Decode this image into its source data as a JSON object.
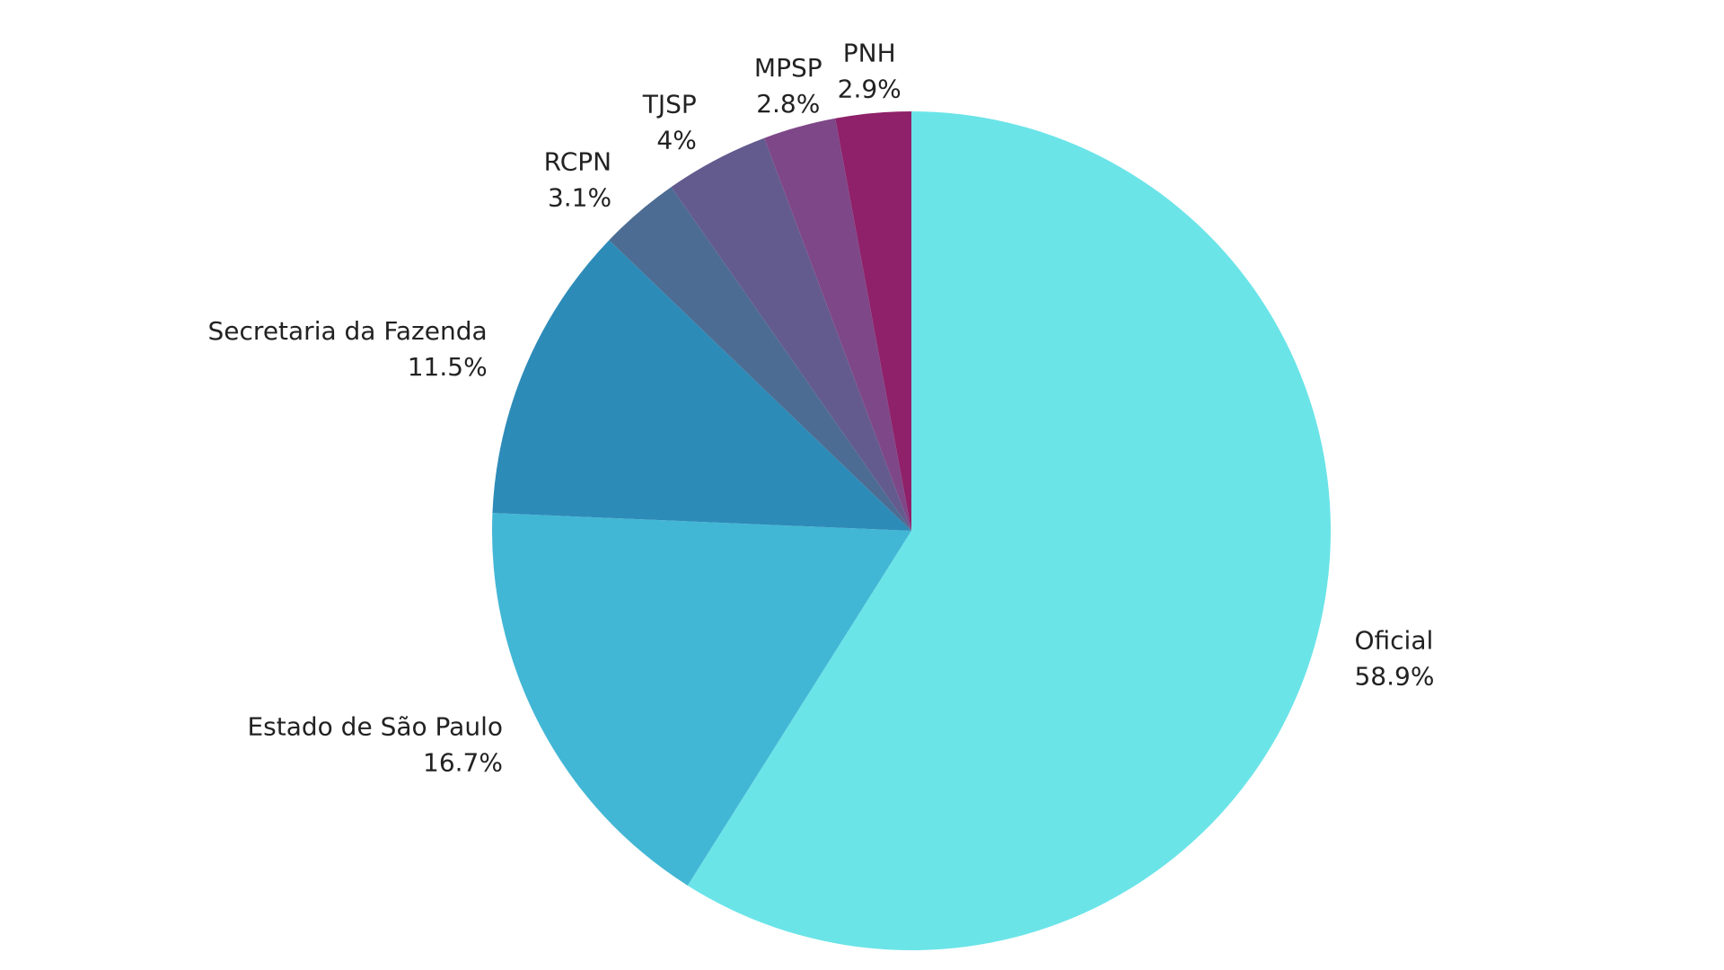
{
  "chart_data": {
    "type": "pie",
    "categories": [
      "Oficial",
      "Estado de São Paulo",
      "Secretaria da Fazenda",
      "RCPN",
      "TJSP",
      "MPSP",
      "PNH"
    ],
    "values": [
      58.9,
      16.7,
      11.5,
      3.1,
      4,
      2.8,
      2.9
    ],
    "value_labels": [
      "58.9%",
      "16.7%",
      "11.5%",
      "3.1%",
      "4%",
      "2.8%",
      "2.9%"
    ],
    "colors": [
      "#6be4e8",
      "#42b7d5",
      "#2d8bb8",
      "#4c6c93",
      "#635b8e",
      "#7e4788",
      "#8e2169"
    ]
  }
}
